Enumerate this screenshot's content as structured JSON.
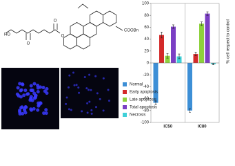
{
  "structure": {
    "labels": [
      "HO",
      "O",
      "O",
      "O",
      "COOBn"
    ]
  },
  "chart_data": {
    "type": "bar",
    "y_label": "% cell respect to control",
    "categories": [
      "IC50",
      "IC80"
    ],
    "series": [
      {
        "name": "Normal",
        "color": "#3d8fd6",
        "values": [
          -67,
          -80
        ],
        "errors": [
          3,
          3
        ]
      },
      {
        "name": "Early apoptosis",
        "color": "#d42a2a",
        "values": [
          47,
          15
        ],
        "errors": [
          5,
          3
        ]
      },
      {
        "name": "Late apoptosis",
        "color": "#8ed13c",
        "values": [
          12,
          66
        ],
        "errors": [
          4,
          3
        ]
      },
      {
        "name": "Total apoptosis",
        "color": "#7b3fc4",
        "values": [
          61,
          83
        ],
        "errors": [
          3,
          3
        ]
      },
      {
        "name": "Necrosis",
        "color": "#3fd0d8",
        "values": [
          11,
          -2
        ],
        "errors": [
          4,
          1
        ]
      }
    ],
    "ylim": [
      -100,
      100
    ],
    "yticks": [
      -100,
      -80,
      -60,
      -40,
      -20,
      0,
      20,
      40,
      60,
      80,
      100
    ],
    "grid": false,
    "legend": "left"
  }
}
